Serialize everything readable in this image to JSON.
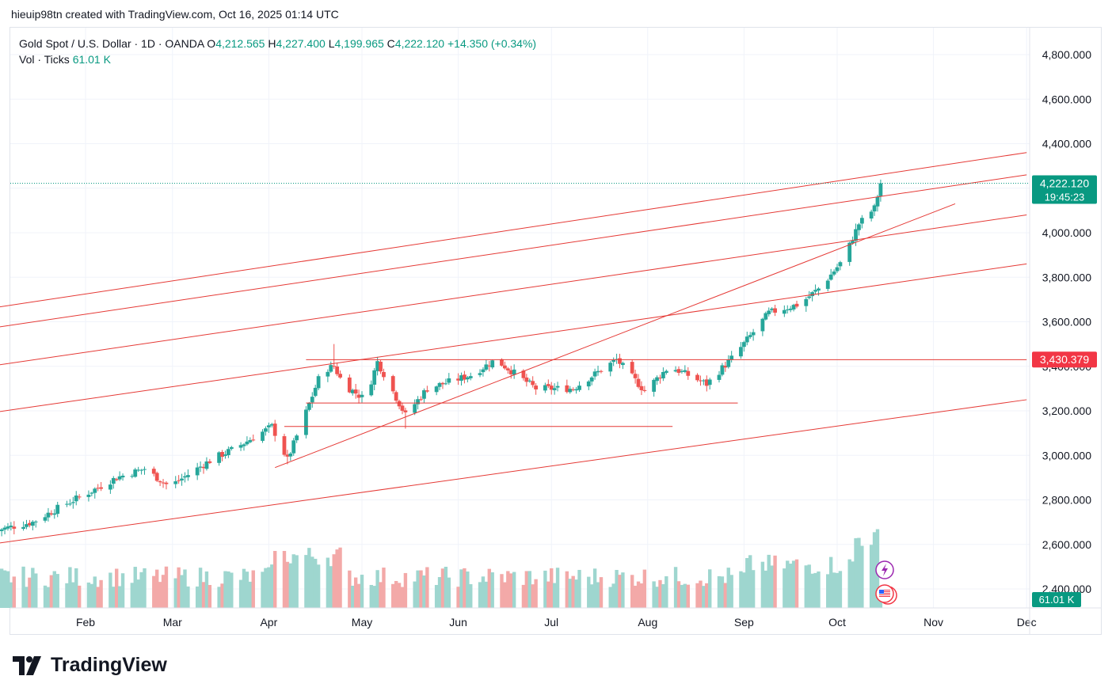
{
  "caption": "hieuip98tn created with TradingView.com, Oct 16, 2025 01:14 UTC",
  "legend": {
    "symbol": "Gold Spot / U.S. Dollar · 1D · OANDA",
    "o_label": "O",
    "o_value": "4,212.565",
    "h_label": "H",
    "h_value": "4,227.400",
    "l_label": "L",
    "l_value": "4,199.965",
    "c_label": "C",
    "c_value": "4,222.120",
    "change": "+14.350 (+0.34%)",
    "vol_label": "Vol · Ticks",
    "vol_value": "61.01 K"
  },
  "brand": {
    "name": "TradingView",
    "icon": "tradingview-logo-icon"
  },
  "colors": {
    "up": "#26a69a",
    "down": "#ef5350",
    "volume_up": "#9ed6cf",
    "volume_down": "#f3a9a8",
    "trendline": "#e53935",
    "price_tag": "#089981",
    "level_tag": "#f23645",
    "grid": "#f0f3fa"
  },
  "chart_data": {
    "type": "candlestick",
    "symbol": "XAUUSD",
    "timeframe": "1D",
    "yticks": [
      "2,400.000",
      "2,600.000",
      "2,800.000",
      "3,000.000",
      "3,200.000",
      "3,400.000",
      "3,600.000",
      "3,800.000",
      "4,000.000",
      "4,200.000",
      "4,400.000",
      "4,600.000",
      "4,800.000"
    ],
    "xticks": [
      "Feb",
      "Mar",
      "Apr",
      "May",
      "Jun",
      "Jul",
      "Aug",
      "Sep",
      "Oct",
      "Nov",
      "Dec"
    ],
    "current_price": "4,222.120",
    "countdown": "19:45:23",
    "level_label": "3,430.379",
    "volume_label": "61.01 K",
    "price_anchors": [
      {
        "date": "Jan 2",
        "close": 2660
      },
      {
        "date": "Jan 15",
        "close": 2700
      },
      {
        "date": "Jan 24",
        "close": 2770
      },
      {
        "date": "Feb 3",
        "close": 2840
      },
      {
        "date": "Feb 11",
        "close": 2900
      },
      {
        "date": "Feb 20",
        "close": 2940
      },
      {
        "date": "Feb 28",
        "close": 2860
      },
      {
        "date": "Mar 14",
        "close": 2985
      },
      {
        "date": "Mar 21",
        "close": 3030
      },
      {
        "date": "Apr 2",
        "close": 3130
      },
      {
        "date": "Apr 7",
        "close": 2980
      },
      {
        "date": "Apr 14",
        "close": 3230
      },
      {
        "date": "Apr 18",
        "close": 3380
      },
      {
        "date": "Apr 22",
        "close": 3400
      },
      {
        "date": "Apr 25",
        "close": 3320
      },
      {
        "date": "May 2",
        "close": 3250
      },
      {
        "date": "May 6",
        "close": 3420
      },
      {
        "date": "May 15",
        "close": 3180
      },
      {
        "date": "May 22",
        "close": 3300
      },
      {
        "date": "Jun 5",
        "close": 3360
      },
      {
        "date": "Jun 13",
        "close": 3430
      },
      {
        "date": "Jun 26",
        "close": 3300
      },
      {
        "date": "Jul 8",
        "close": 3300
      },
      {
        "date": "Jul 22",
        "close": 3430
      },
      {
        "date": "Jul 31",
        "close": 3290
      },
      {
        "date": "Aug 8",
        "close": 3400
      },
      {
        "date": "Aug 20",
        "close": 3320
      },
      {
        "date": "Aug 29",
        "close": 3450
      },
      {
        "date": "Sep 9",
        "close": 3640
      },
      {
        "date": "Sep 19",
        "close": 3680
      },
      {
        "date": "Sep 26",
        "close": 3760
      },
      {
        "date": "Oct 3",
        "close": 3880
      },
      {
        "date": "Oct 8",
        "close": 4040
      },
      {
        "date": "Oct 13",
        "close": 4110
      },
      {
        "date": "Oct 15",
        "close": 4222
      }
    ],
    "trendlines": [
      {
        "from": {
          "date": "Jan 1",
          "price": 3660
        },
        "to": {
          "date": "Dec 1",
          "price": 4360
        }
      },
      {
        "from": {
          "date": "Jan 1",
          "price": 3570
        },
        "to": {
          "date": "Dec 1",
          "price": 4260
        }
      },
      {
        "from": {
          "date": "Jan 1",
          "price": 3400
        },
        "to": {
          "date": "Dec 1",
          "price": 4080
        }
      },
      {
        "from": {
          "date": "Jan 1",
          "price": 3190
        },
        "to": {
          "date": "Dec 1",
          "price": 3860
        }
      },
      {
        "from": {
          "date": "Jan 1",
          "price": 2600
        },
        "to": {
          "date": "Dec 1",
          "price": 3250
        }
      },
      {
        "from": {
          "date": "Apr 3",
          "price": 2945
        },
        "to": {
          "date": "Nov 8",
          "price": 4130
        }
      },
      {
        "from": {
          "date": "Apr 13",
          "price": 3430
        },
        "to": {
          "date": "Dec 1",
          "price": 3430
        }
      },
      {
        "from": {
          "date": "Apr 13",
          "price": 3235
        },
        "to": {
          "date": "Aug 30",
          "price": 3235
        }
      },
      {
        "from": {
          "date": "Apr 6",
          "price": 3130
        },
        "to": {
          "date": "Aug 9",
          "price": 3130
        }
      }
    ]
  }
}
